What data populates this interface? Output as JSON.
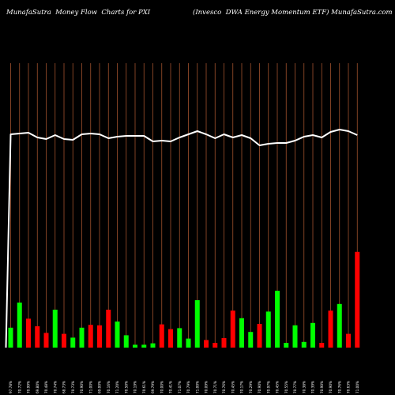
{
  "header": {
    "left": "MunafaSutra  Money Flow  Charts for PXI",
    "right": "(Invesco  DWA Energy Momentum ETF) MunafaSutra.com"
  },
  "chart_data": {
    "type": "bar",
    "series": [
      {
        "values": [
          42,
          95,
          61,
          45,
          31,
          80,
          29,
          21,
          42,
          48,
          47,
          80,
          55,
          26,
          6,
          6,
          9,
          49,
          39,
          41,
          19,
          100,
          16,
          10,
          20,
          78,
          62,
          33,
          50,
          76,
          120,
          10,
          47,
          12,
          52,
          10,
          78,
          92,
          29,
          202
        ],
        "colors": [
          "g",
          "g",
          "r",
          "r",
          "r",
          "g",
          "r",
          "g",
          "g",
          "r",
          "r",
          "r",
          "g",
          "g",
          "g",
          "g",
          "g",
          "r",
          "r",
          "g",
          "g",
          "g",
          "r",
          "r",
          "r",
          "r",
          "g",
          "g",
          "r",
          "g",
          "g",
          "g",
          "g",
          "g",
          "g",
          "r",
          "r",
          "g",
          "r",
          "r"
        ]
      },
      {
        "values": [
          250,
          251,
          252,
          246,
          244,
          249,
          244,
          243,
          250,
          251,
          250,
          245,
          247,
          248,
          248,
          248,
          241,
          242,
          241,
          246,
          250,
          254,
          250,
          245,
          250,
          246,
          249,
          245,
          236,
          238,
          239,
          239,
          242,
          247,
          249,
          246,
          253,
          256,
          254,
          249
        ]
      }
    ],
    "tick_labels": [
      "97.78%",
      "70.72%",
      "70.99%",
      "69.80%",
      "70.48%",
      "70.74%",
      "68.73%",
      "70.73%",
      "70.90%",
      "71.00%",
      "69.00%",
      "70.16%",
      "71.20%",
      "70.50%",
      "70.19%",
      "70.61%",
      "69.79%",
      "70.00%",
      "70.41%",
      "71.07%",
      "70.79%",
      "71.00%",
      "70.09%",
      "70.71%",
      "70.76%",
      "70.45%",
      "70.17%",
      "70.29%",
      "70.90%",
      "70.97%",
      "70.45%",
      "70.55%",
      "70.77%",
      "70.38%",
      "70.39%",
      "70.90%",
      "70.90%",
      "70.76%",
      "70.63%",
      "71.00%"
    ],
    "colors": {
      "green": "#00ff00",
      "red": "#ff0000",
      "grid": "#a0522d",
      "line": "#ffffff"
    }
  }
}
